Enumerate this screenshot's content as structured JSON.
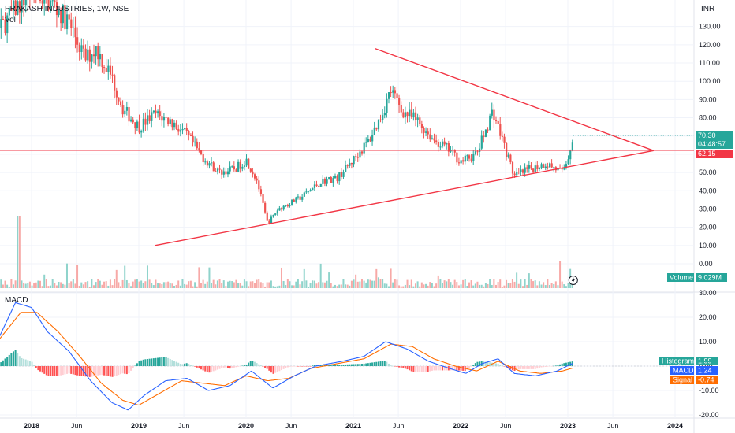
{
  "header": {
    "symbol_line": "PRAKASH INDUSTRIES, 1W, NSE",
    "vol_label": "Vol",
    "macd_label": "MACD",
    "currency": "INR"
  },
  "price_tags": {
    "last": "70.30",
    "countdown": "04:48:57",
    "hline": "62.15",
    "volume_label": "Volume",
    "volume_value": "9.029M",
    "hist_label": "Histogram",
    "hist_value": "1.99",
    "macd_label": "MACD",
    "macd_value": "1.24",
    "signal_label": "Signal",
    "signal_value": "-0.74"
  },
  "colors": {
    "up": "#26a69a",
    "down": "#ef5350",
    "line": "#f23645",
    "macd": "#2962ff",
    "signal": "#ff6d00",
    "grid": "#f0f3fa"
  },
  "chart_data": [
    {
      "type": "candlestick",
      "title": "PRAKASH INDUSTRIES, 1W, NSE",
      "ylabel": "INR",
      "price_ticks": [
        "130.00",
        "120.00",
        "110.00",
        "100.00",
        "90.00",
        "80.00",
        "70.00",
        "60.00",
        "50.00",
        "40.00",
        "30.00",
        "20.00",
        "10.00",
        "0.00"
      ],
      "x_ticks": [
        "2018",
        "Jun",
        "2019",
        "Jun",
        "2020",
        "Jun",
        "2021",
        "Jun",
        "2022",
        "Jun",
        "2023",
        "Jun",
        "2024"
      ],
      "ylim": [
        0,
        140
      ],
      "close_points": [
        {
          "t": 2017.35,
          "v": 93
        },
        {
          "t": 2017.5,
          "v": 110
        },
        {
          "t": 2017.7,
          "v": 128
        },
        {
          "t": 2017.85,
          "v": 140
        },
        {
          "t": 2018.0,
          "v": 150
        },
        {
          "t": 2018.2,
          "v": 142
        },
        {
          "t": 2018.35,
          "v": 132
        },
        {
          "t": 2018.5,
          "v": 112
        },
        {
          "t": 2018.6,
          "v": 118
        },
        {
          "t": 2018.75,
          "v": 102
        },
        {
          "t": 2018.85,
          "v": 85
        },
        {
          "t": 2019.0,
          "v": 75
        },
        {
          "t": 2019.15,
          "v": 82
        },
        {
          "t": 2019.3,
          "v": 78
        },
        {
          "t": 2019.45,
          "v": 70
        },
        {
          "t": 2019.6,
          "v": 58
        },
        {
          "t": 2019.75,
          "v": 50
        },
        {
          "t": 2019.9,
          "v": 52
        },
        {
          "t": 2020.0,
          "v": 57
        },
        {
          "t": 2020.1,
          "v": 46
        },
        {
          "t": 2020.2,
          "v": 22
        },
        {
          "t": 2020.3,
          "v": 30
        },
        {
          "t": 2020.5,
          "v": 36
        },
        {
          "t": 2020.7,
          "v": 45
        },
        {
          "t": 2020.85,
          "v": 47
        },
        {
          "t": 2021.0,
          "v": 57
        },
        {
          "t": 2021.15,
          "v": 68
        },
        {
          "t": 2021.25,
          "v": 80
        },
        {
          "t": 2021.35,
          "v": 95
        },
        {
          "t": 2021.45,
          "v": 84
        },
        {
          "t": 2021.6,
          "v": 78
        },
        {
          "t": 2021.75,
          "v": 68
        },
        {
          "t": 2021.9,
          "v": 62
        },
        {
          "t": 2022.0,
          "v": 56
        },
        {
          "t": 2022.15,
          "v": 60
        },
        {
          "t": 2022.3,
          "v": 84
        },
        {
          "t": 2022.4,
          "v": 66
        },
        {
          "t": 2022.5,
          "v": 48
        },
        {
          "t": 2022.65,
          "v": 52
        },
        {
          "t": 2022.8,
          "v": 55
        },
        {
          "t": 2022.95,
          "v": 50
        },
        {
          "t": 2023.0,
          "v": 58
        },
        {
          "t": 2023.05,
          "v": 70.3
        }
      ],
      "hline": 62.15,
      "trendlines": [
        {
          "name": "upper",
          "from": {
            "t": 2021.2,
            "v": 118
          },
          "to": {
            "t": 2023.8,
            "v": 62
          }
        },
        {
          "name": "lower",
          "from": {
            "t": 2019.15,
            "v": 10
          },
          "to": {
            "t": 2023.8,
            "v": 62
          }
        }
      ]
    },
    {
      "type": "bar",
      "title": "Vol",
      "last_value": "9.029M"
    },
    {
      "type": "line",
      "title": "MACD",
      "ticks": [
        "30.00",
        "20.00",
        "10.00",
        "0.00",
        "-10.00",
        "-20.00"
      ],
      "ylim": [
        -22,
        31
      ],
      "macd_points": [
        {
          "t": 2017.35,
          "v": 10
        },
        {
          "t": 2017.5,
          "v": 8
        },
        {
          "t": 2017.7,
          "v": 12
        },
        {
          "t": 2017.85,
          "v": 26
        },
        {
          "t": 2018.0,
          "v": 24
        },
        {
          "t": 2018.15,
          "v": 14
        },
        {
          "t": 2018.35,
          "v": 6
        },
        {
          "t": 2018.55,
          "v": -6
        },
        {
          "t": 2018.75,
          "v": -15
        },
        {
          "t": 2018.9,
          "v": -18
        },
        {
          "t": 2019.05,
          "v": -12
        },
        {
          "t": 2019.25,
          "v": -6
        },
        {
          "t": 2019.45,
          "v": -5
        },
        {
          "t": 2019.65,
          "v": -10
        },
        {
          "t": 2019.85,
          "v": -8
        },
        {
          "t": 2020.05,
          "v": -2
        },
        {
          "t": 2020.25,
          "v": -9
        },
        {
          "t": 2020.45,
          "v": -4
        },
        {
          "t": 2020.65,
          "v": 0
        },
        {
          "t": 2020.9,
          "v": 2
        },
        {
          "t": 2021.1,
          "v": 4
        },
        {
          "t": 2021.3,
          "v": 10
        },
        {
          "t": 2021.5,
          "v": 7
        },
        {
          "t": 2021.7,
          "v": 2
        },
        {
          "t": 2021.9,
          "v": -1
        },
        {
          "t": 2022.05,
          "v": -3
        },
        {
          "t": 2022.2,
          "v": 1
        },
        {
          "t": 2022.35,
          "v": 3
        },
        {
          "t": 2022.5,
          "v": -3
        },
        {
          "t": 2022.7,
          "v": -4
        },
        {
          "t": 2022.9,
          "v": -2
        },
        {
          "t": 2023.05,
          "v": 1.24
        }
      ],
      "signal_points": [
        {
          "t": 2017.35,
          "v": 12
        },
        {
          "t": 2017.5,
          "v": 10
        },
        {
          "t": 2017.7,
          "v": 11
        },
        {
          "t": 2017.9,
          "v": 22
        },
        {
          "t": 2018.05,
          "v": 22
        },
        {
          "t": 2018.25,
          "v": 14
        },
        {
          "t": 2018.45,
          "v": 4
        },
        {
          "t": 2018.65,
          "v": -7
        },
        {
          "t": 2018.85,
          "v": -14
        },
        {
          "t": 2019.0,
          "v": -16
        },
        {
          "t": 2019.2,
          "v": -11
        },
        {
          "t": 2019.4,
          "v": -6
        },
        {
          "t": 2019.6,
          "v": -7
        },
        {
          "t": 2019.8,
          "v": -8
        },
        {
          "t": 2020.0,
          "v": -4
        },
        {
          "t": 2020.2,
          "v": -6
        },
        {
          "t": 2020.4,
          "v": -5
        },
        {
          "t": 2020.6,
          "v": -1
        },
        {
          "t": 2020.85,
          "v": 1
        },
        {
          "t": 2021.1,
          "v": 3
        },
        {
          "t": 2021.35,
          "v": 9
        },
        {
          "t": 2021.55,
          "v": 8
        },
        {
          "t": 2021.75,
          "v": 3
        },
        {
          "t": 2021.95,
          "v": 0
        },
        {
          "t": 2022.15,
          "v": -2
        },
        {
          "t": 2022.35,
          "v": 2
        },
        {
          "t": 2022.55,
          "v": -2
        },
        {
          "t": 2022.75,
          "v": -3
        },
        {
          "t": 2022.95,
          "v": -2
        },
        {
          "t": 2023.05,
          "v": -0.74
        }
      ],
      "histogram_last": "1.99"
    }
  ]
}
